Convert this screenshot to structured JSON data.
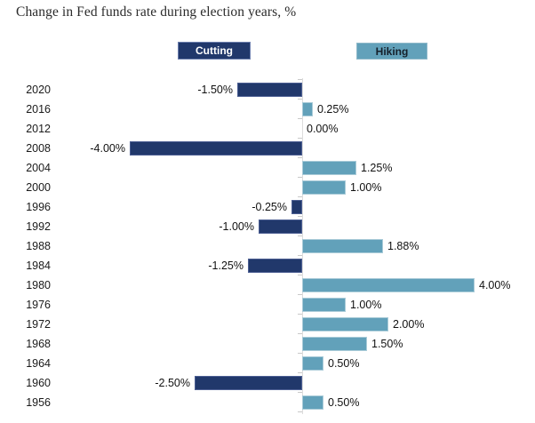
{
  "title": "Change in Fed funds rate during election years, %",
  "legend": {
    "cutting_label": "Cutting",
    "hiking_label": "Hiking",
    "position": "top"
  },
  "colors": {
    "cutting_fill": "#21386b",
    "hiking_fill": "#62a1ba",
    "axis_line": "#dcdcdc",
    "title_text": "#2b2b2b",
    "label_text": "#1a1a1a"
  },
  "chart_data": {
    "type": "bar",
    "orientation": "horizontal",
    "title": "Change in Fed funds rate during election years, %",
    "xlabel": "",
    "ylabel": "",
    "categories": [
      "2020",
      "2016",
      "2012",
      "2008",
      "2004",
      "2000",
      "1996",
      "1992",
      "1988",
      "1984",
      "1980",
      "1976",
      "1972",
      "1968",
      "1964",
      "1960",
      "1956"
    ],
    "values": [
      -1.5,
      0.25,
      0.0,
      -4.0,
      1.25,
      1.0,
      -0.25,
      -1.0,
      1.88,
      -1.25,
      4.0,
      1.0,
      2.0,
      1.5,
      0.5,
      -2.5,
      0.5
    ],
    "value_labels": [
      "-1.50%",
      "0.25%",
      "0.00%",
      "-4.00%",
      "1.25%",
      "1.00%",
      "-0.25%",
      "-1.00%",
      "1.88%",
      "-1.25%",
      "4.00%",
      "1.00%",
      "2.00%",
      "1.50%",
      "0.50%",
      "-2.50%",
      "0.50%"
    ],
    "series_rule": {
      "negative_values": "Cutting",
      "positive_values": "Hiking"
    },
    "xlim": [
      -4.0,
      4.0
    ],
    "gridlines": false,
    "zero_line": true,
    "x_tick_labels_visible": false,
    "legend_position": "top"
  }
}
